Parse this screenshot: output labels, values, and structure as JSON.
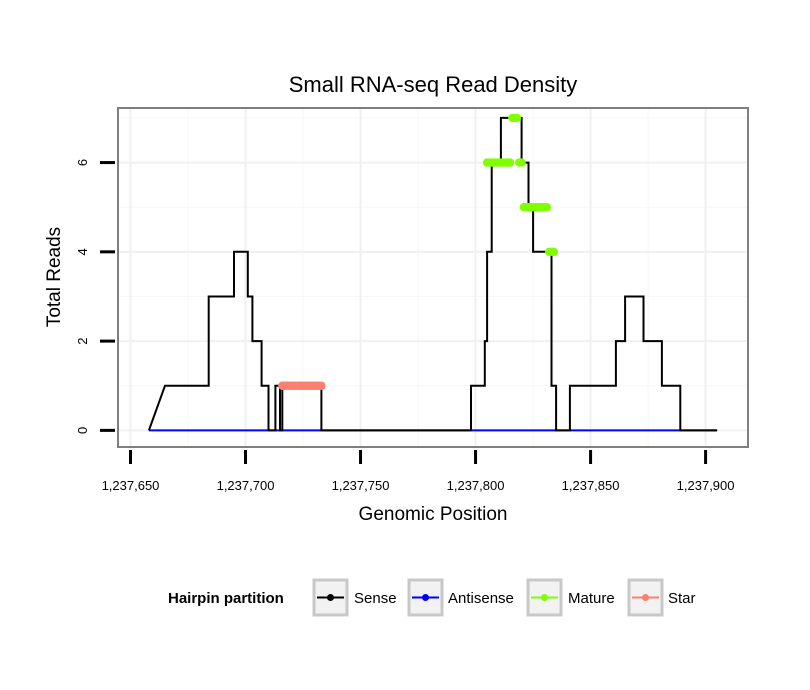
{
  "chart_data": {
    "type": "line",
    "title": "Small RNA-seq Read Density",
    "xlabel": "Genomic Position",
    "ylabel": "Total Reads",
    "xlim": [
      1237645,
      1237918
    ],
    "ylim": [
      -0.35,
      7.2
    ],
    "x_ticks": [
      1237650,
      1237700,
      1237750,
      1237800,
      1237850,
      1237900
    ],
    "x_tick_labels": [
      "1,237,650",
      "1,237,700",
      "1,237,750",
      "1,237,800",
      "1,237,850",
      "1,237,900"
    ],
    "y_ticks": [
      0,
      2,
      4,
      6
    ],
    "y_tick_labels": [
      "0",
      "2",
      "4",
      "6"
    ],
    "grid": true,
    "legend": {
      "title": "Hairpin partition",
      "position": "bottom",
      "entries": [
        {
          "name": "Sense",
          "color": "#000000"
        },
        {
          "name": "Antisense",
          "color": "#0000ff"
        },
        {
          "name": "Mature",
          "color": "#7fff00"
        },
        {
          "name": "Star",
          "color": "#fa8072"
        }
      ]
    },
    "series": [
      {
        "name": "Sense",
        "color": "#000000",
        "x": [
          1237658,
          1237665,
          1237665,
          1237684,
          1237684,
          1237695,
          1237695,
          1237701,
          1237701,
          1237703,
          1237703,
          1237707,
          1237707,
          1237710,
          1237710,
          1237713,
          1237713,
          1237715,
          1237715,
          1237716,
          1237716,
          1237733,
          1237733,
          1237798,
          1237798,
          1237804,
          1237804,
          1237805,
          1237805,
          1237807,
          1237807,
          1237811,
          1237811,
          1237820,
          1237820,
          1237823,
          1237823,
          1237825,
          1237825,
          1237833,
          1237833,
          1237835,
          1237835,
          1237841,
          1237841,
          1237861,
          1237861,
          1237865,
          1237865,
          1237873,
          1237873,
          1237881,
          1237881,
          1237889,
          1237889,
          1237896,
          1237896,
          1237905
        ],
        "y": [
          0,
          1,
          1,
          1,
          3,
          3,
          4,
          4,
          3,
          3,
          2,
          2,
          1,
          1,
          0,
          0,
          1,
          1,
          0,
          0,
          1,
          1,
          0,
          0,
          1,
          1,
          2,
          2,
          4,
          4,
          6,
          6,
          7,
          7,
          6,
          6,
          5,
          5,
          4,
          4,
          1,
          1,
          0,
          0,
          1,
          1,
          2,
          2,
          3,
          3,
          2,
          2,
          1,
          1,
          0,
          0,
          0,
          0
        ]
      },
      {
        "name": "Antisense",
        "color": "#0000ff",
        "x": [
          1237658,
          1237905
        ],
        "y": [
          0,
          0
        ]
      }
    ],
    "point_series": [
      {
        "name": "Mature",
        "color": "#7fff00",
        "x": [
          1237805,
          1237806,
          1237807,
          1237808,
          1237809,
          1237810,
          1237811,
          1237812,
          1237813,
          1237814,
          1237815,
          1237816,
          1237817,
          1237818,
          1237819,
          1237820,
          1237821,
          1237822,
          1237823,
          1237824,
          1237825,
          1237826,
          1237827,
          1237828,
          1237829,
          1237830,
          1237831,
          1237832,
          1237833,
          1237834
        ],
        "y": [
          6,
          6,
          6,
          6,
          6,
          6,
          6,
          6,
          6,
          6,
          6,
          7,
          7,
          7,
          6,
          6,
          5,
          5,
          5,
          5,
          5,
          5,
          5,
          5,
          5,
          5,
          5,
          4,
          4,
          4
        ]
      },
      {
        "name": "Star",
        "color": "#fa8072",
        "x": [
          1237716,
          1237717,
          1237718,
          1237719,
          1237720,
          1237721,
          1237722,
          1237723,
          1237724,
          1237725,
          1237726,
          1237727,
          1237728,
          1237729,
          1237730,
          1237731,
          1237732,
          1237733
        ],
        "y": [
          1,
          1,
          1,
          1,
          1,
          1,
          1,
          1,
          1,
          1,
          1,
          1,
          1,
          1,
          1,
          1,
          1,
          1
        ]
      }
    ]
  }
}
